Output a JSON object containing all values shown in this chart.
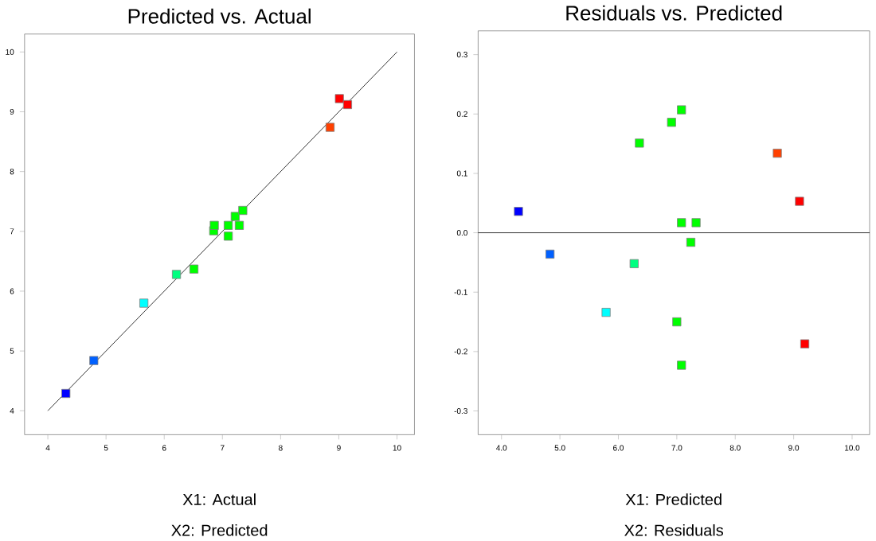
{
  "chart_data": [
    {
      "type": "scatter",
      "title": "Predicted vs. Actual",
      "xlabel": "X1: Actual",
      "annotations": [
        "X2: Predicted"
      ],
      "xlim": [
        3.6,
        10.3
      ],
      "ylim": [
        3.6,
        10.3
      ],
      "xticks": [
        4,
        5,
        6,
        7,
        8,
        9,
        10
      ],
      "yticks": [
        4,
        5,
        6,
        7,
        8,
        9,
        10
      ],
      "series": [
        {
          "type": "line",
          "color": "#000000",
          "x": [
            4,
            10
          ],
          "values": [
            4,
            10
          ]
        },
        {
          "marker": "square",
          "x": [
            4.31,
            4.79,
            5.65,
            6.21,
            6.51,
            6.85,
            6.86,
            7.1,
            7.1,
            7.22,
            7.29,
            7.35,
            8.85,
            9.01,
            9.15
          ],
          "values": [
            4.29,
            4.84,
            5.8,
            6.28,
            6.37,
            7.01,
            7.1,
            7.1,
            6.92,
            7.25,
            7.1,
            7.35,
            8.74,
            9.22,
            9.12
          ],
          "colors": [
            "#0000ff",
            "#0060ff",
            "#00ffff",
            "#00ff80",
            "#00ff00",
            "#00ff00",
            "#00ff00",
            "#00ff00",
            "#00ff00",
            "#00ff00",
            "#00ff00",
            "#00ff00",
            "#ff4000",
            "#ff0000",
            "#ff0000"
          ]
        }
      ]
    },
    {
      "type": "scatter",
      "title": "Residuals vs. Predicted",
      "xlabel": "X1: Predicted",
      "annotations": [
        "X2: Residuals"
      ],
      "marker": "square",
      "xlim": [
        3.6,
        10.3
      ],
      "ylim": [
        -0.34,
        0.34
      ],
      "xticks": [
        {
          "value": 4,
          "label": "4.0"
        },
        {
          "value": 5,
          "label": "5.0"
        },
        {
          "value": 6,
          "label": "6.0"
        },
        {
          "value": 7,
          "label": "7.0"
        },
        {
          "value": 8,
          "label": "8.0"
        },
        {
          "value": 9,
          "label": "9.0"
        },
        {
          "value": 10,
          "label": "10.0"
        }
      ],
      "yticks": [
        {
          "value": -0.3,
          "label": "-0.3"
        },
        {
          "value": -0.2,
          "label": "-0.2"
        },
        {
          "value": -0.1,
          "label": "-0.1"
        },
        {
          "value": 0,
          "label": "0.0"
        },
        {
          "value": 0.1,
          "label": "0.1"
        },
        {
          "value": 0.2,
          "label": "0.2"
        },
        {
          "value": 0.3,
          "label": "0.3"
        }
      ],
      "ref_lines": [
        {
          "axis": "y",
          "value": 0,
          "color": "#000000"
        }
      ],
      "series": [
        {
          "x": [
            4.29,
            4.83,
            5.79,
            6.27,
            6.36,
            6.91,
            7.08,
            7.08,
            7.33,
            7.24,
            7.0,
            7.08,
            8.72,
            9.1,
            9.19
          ],
          "values": [
            0.036,
            -0.036,
            -0.134,
            -0.052,
            0.151,
            0.186,
            0.207,
            0.017,
            0.017,
            -0.016,
            -0.15,
            -0.223,
            0.134,
            0.053,
            -0.187
          ],
          "colors": [
            "#0000ff",
            "#0060ff",
            "#00ffff",
            "#00ff80",
            "#00ff00",
            "#00ff00",
            "#00ff00",
            "#00ff00",
            "#00ff00",
            "#00ff00",
            "#00ff00",
            "#00ff00",
            "#ff4000",
            "#ff0000",
            "#ff0000"
          ]
        }
      ]
    }
  ]
}
